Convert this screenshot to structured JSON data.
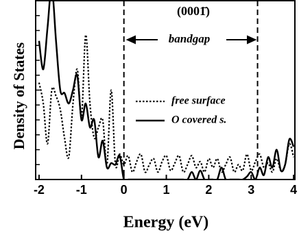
{
  "chart_data": {
    "type": "line",
    "x_label": "Energy (eV)",
    "y_label": "Density of States",
    "annotation": "(0001̄)",
    "gap_label": "bandgap",
    "x": [
      -2.0,
      -1.9,
      -1.8,
      -1.7,
      -1.6,
      -1.5,
      -1.4,
      -1.3,
      -1.2,
      -1.1,
      -1.0,
      -0.9,
      -0.8,
      -0.7,
      -0.6,
      -0.5,
      -0.4,
      -0.3,
      -0.2,
      -0.1,
      0.0,
      0.1,
      0.2,
      0.3,
      0.4,
      0.5,
      0.6,
      0.7,
      0.8,
      0.9,
      1.0,
      1.1,
      1.2,
      1.3,
      1.4,
      1.5,
      1.6,
      1.7,
      1.8,
      1.9,
      2.0,
      2.1,
      2.2,
      2.3,
      2.4,
      2.5,
      2.6,
      2.7,
      2.8,
      2.9,
      3.0,
      3.1,
      3.2,
      3.3,
      3.4,
      3.5,
      3.6,
      3.7,
      3.8,
      3.9,
      4.0
    ],
    "series": [
      {
        "name": "free surface",
        "color": "#000000",
        "dash": "dotted",
        "values": [
          6.5,
          5.1,
          2.4,
          6.0,
          5.6,
          4.7,
          2.8,
          1.5,
          5.1,
          7.4,
          4.2,
          9.7,
          5.1,
          2.8,
          3.5,
          4.0,
          1.0,
          6.0,
          1.0,
          1.7,
          1.0,
          1.6,
          0.5,
          1.2,
          1.7,
          0.5,
          1.0,
          1.4,
          0.5,
          1.2,
          1.6,
          0.6,
          1.1,
          1.6,
          0.5,
          1.0,
          1.6,
          0.8,
          1.2,
          0.5,
          1.4,
          0.8,
          1.4,
          0.5,
          1.0,
          1.5,
          0.5,
          1.0,
          0.6,
          1.7,
          0.6,
          1.2,
          1.7,
          0.8,
          1.1,
          0.5,
          1.4,
          0.6,
          1.0,
          2.4,
          1.5
        ]
      },
      {
        "name": "O covered s.",
        "color": "#000000",
        "dash": "solid",
        "values": [
          9.3,
          7.4,
          10.2,
          12.9,
          9.3,
          6.0,
          5.8,
          5.1,
          6.0,
          7.0,
          4.0,
          5.1,
          3.5,
          4.0,
          1.5,
          2.6,
          0.8,
          1.1,
          1.0,
          1.6,
          0,
          0,
          0,
          0,
          0,
          0,
          0,
          0,
          0,
          0,
          0,
          0,
          0,
          0,
          0,
          0,
          0.5,
          0,
          0.6,
          0,
          0,
          0,
          0,
          0.8,
          0,
          0,
          0,
          0,
          0,
          0.2,
          0.5,
          0,
          0.8,
          0.3,
          1.5,
          0.8,
          2.0,
          0.6,
          1.0,
          2.7,
          2.2
        ]
      }
    ],
    "vlines": [
      0,
      3.15
    ],
    "xlim": [
      -2.08,
      4.03
    ],
    "xticks": [
      -2,
      -1,
      0,
      1,
      2,
      3,
      4
    ],
    "ylim": [
      0,
      12
    ],
    "yticks": [
      0,
      1,
      2,
      3,
      4,
      5,
      6,
      7,
      8,
      9,
      10,
      11,
      12
    ]
  }
}
